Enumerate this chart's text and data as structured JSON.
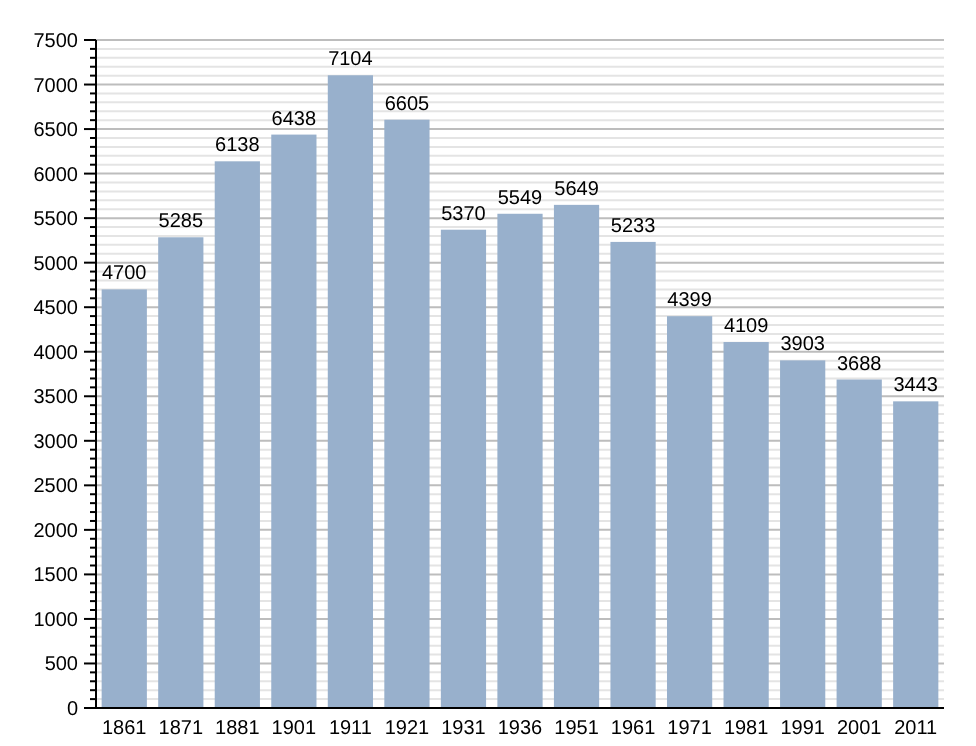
{
  "chart_data": {
    "type": "bar",
    "categories": [
      "1861",
      "1871",
      "1881",
      "1901",
      "1911",
      "1921",
      "1931",
      "1936",
      "1951",
      "1961",
      "1971",
      "1981",
      "1991",
      "2001",
      "2011"
    ],
    "values": [
      4700,
      5285,
      6138,
      6438,
      7104,
      6605,
      5370,
      5549,
      5649,
      5233,
      4399,
      4109,
      3903,
      3688,
      3443
    ],
    "color": "#98b0cc",
    "ylim": [
      0,
      7500
    ],
    "yticks": [
      0,
      {
        "value": 100,
        "label": null
      },
      {
        "value": 200,
        "label": null
      },
      {
        "value": 300,
        "label": null
      },
      {
        "value": 400,
        "label": null
      },
      500,
      {
        "value": 600,
        "label": null
      },
      {
        "value": 700,
        "label": null
      },
      {
        "value": 800,
        "label": null
      },
      {
        "value": 900,
        "label": null
      },
      1000,
      {
        "value": 1100,
        "label": null
      },
      {
        "value": 1200,
        "label": null
      },
      {
        "value": 1300,
        "label": null
      },
      {
        "value": 1400,
        "label": null
      },
      1500,
      {
        "value": 1600,
        "label": null
      },
      {
        "value": 1700,
        "label": null
      },
      {
        "value": 1800,
        "label": null
      },
      {
        "value": 1900,
        "label": null
      },
      2000,
      {
        "value": 2100,
        "label": null
      },
      {
        "value": 2200,
        "label": null
      },
      {
        "value": 2300,
        "label": null
      },
      {
        "value": 2400,
        "label": null
      },
      2500,
      {
        "value": 2600,
        "label": null
      },
      {
        "value": 2700,
        "label": null
      },
      {
        "value": 2800,
        "label": null
      },
      {
        "value": 2900,
        "label": null
      },
      3000,
      {
        "value": 3100,
        "label": null
      },
      {
        "value": 3200,
        "label": null
      },
      {
        "value": 3300,
        "label": null
      },
      {
        "value": 3400,
        "label": null
      },
      3500,
      {
        "value": 3600,
        "label": null
      },
      {
        "value": 3700,
        "label": null
      },
      {
        "value": 3800,
        "label": null
      },
      {
        "value": 3900,
        "label": null
      },
      4000,
      {
        "value": 4100,
        "label": null
      },
      {
        "value": 4200,
        "label": null
      },
      {
        "value": 4300,
        "label": null
      },
      {
        "value": 4400,
        "label": null
      },
      4500,
      {
        "value": 4600,
        "label": null
      },
      {
        "value": 4700,
        "label": null
      },
      {
        "value": 4800,
        "label": null
      },
      {
        "value": 4900,
        "label": null
      },
      5000,
      {
        "value": 5100,
        "label": null
      },
      {
        "value": 5200,
        "label": null
      },
      {
        "value": 5300,
        "label": null
      },
      {
        "value": 5400,
        "label": null
      },
      5500,
      {
        "value": 5600,
        "label": null
      },
      {
        "value": 5700,
        "label": null
      },
      {
        "value": 5800,
        "label": null
      },
      {
        "value": 5900,
        "label": null
      },
      6000,
      {
        "value": 6100,
        "label": null
      },
      {
        "value": 6200,
        "label": null
      },
      {
        "value": 6300,
        "label": null
      },
      {
        "value": 6400,
        "label": null
      },
      6500,
      {
        "value": 6600,
        "label": null
      },
      {
        "value": 6700,
        "label": null
      },
      {
        "value": 6800,
        "label": null
      },
      {
        "value": 6900,
        "label": null
      },
      7000,
      {
        "value": 7100,
        "label": null
      },
      {
        "value": 7200,
        "label": null
      },
      {
        "value": 7300,
        "label": null
      },
      {
        "value": 7400,
        "label": null
      },
      7500
    ],
    "grid": true,
    "data_labels": true
  }
}
